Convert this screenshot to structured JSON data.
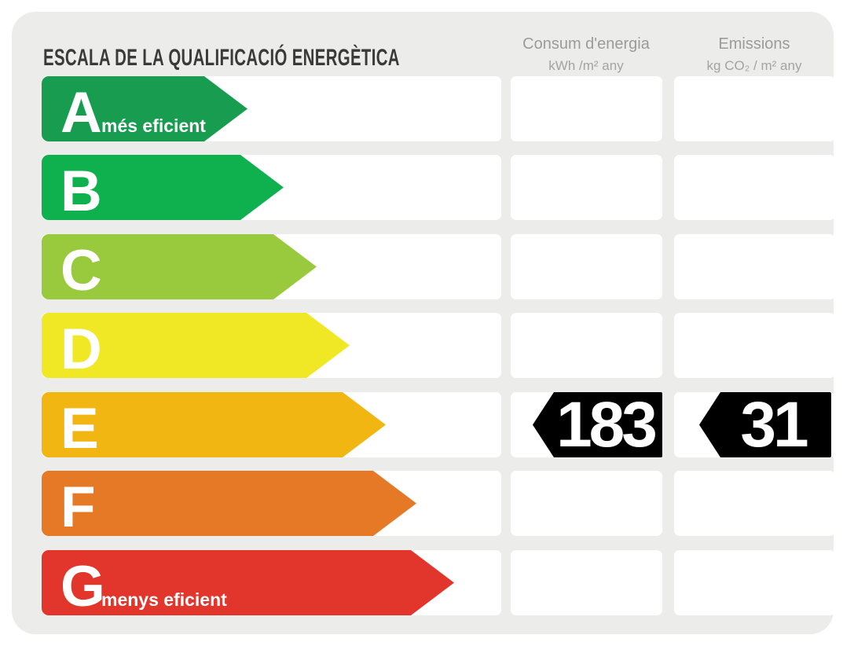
{
  "header": {
    "title": "ESCALA DE LA QUALIFICACIÓ ENERGÈTICA",
    "columns": {
      "consum": {
        "label": "Consum d'energia",
        "units": "kWh /m²  any"
      },
      "emissions": {
        "label": "Emissions",
        "units": "kg CO₂  / m²  any"
      }
    }
  },
  "scale": {
    "bands": [
      {
        "letter": "A",
        "note": "més eficient",
        "color": "#189C4F",
        "arrow_width": 262
      },
      {
        "letter": "B",
        "color": "#0FB14E",
        "arrow_width": 308
      },
      {
        "letter": "C",
        "color": "#99C93C",
        "arrow_width": 350
      },
      {
        "letter": "D",
        "color": "#F0E825",
        "arrow_width": 392
      },
      {
        "letter": "E",
        "color": "#F1B612",
        "arrow_width": 438
      },
      {
        "letter": "F",
        "color": "#E67926",
        "arrow_width": 477
      },
      {
        "letter": "G",
        "note": "menys eficient",
        "color": "#E2352C",
        "arrow_width": 525
      }
    ]
  },
  "values": {
    "rating": "E",
    "consum": "183",
    "emissions": "31",
    "badge_color": "#000000"
  },
  "chart_data": {
    "type": "bar",
    "title": "ESCALA DE LA QUALIFICACIÓ ENERGÈTICA",
    "categories": [
      "A",
      "B",
      "C",
      "D",
      "E",
      "F",
      "G"
    ],
    "series": [
      {
        "name": "scale-arrow-relative-length-px",
        "values": [
          262,
          308,
          350,
          392,
          438,
          477,
          525
        ]
      }
    ],
    "band_colors": [
      "#189C4F",
      "#0FB14E",
      "#99C93C",
      "#F0E825",
      "#F1B612",
      "#E67926",
      "#E2352C"
    ],
    "band_notes": {
      "A": "més eficient",
      "G": "menys eficient"
    },
    "columns": [
      "Consum d'energia (kWh /m² any)",
      "Emissions (kg CO₂ / m² any)"
    ],
    "rated_band": "E",
    "rated_values": {
      "consum_kwh_m2_any": 183,
      "emissions_kg_co2_m2_any": 31
    },
    "legend": "off",
    "grid": "off"
  }
}
